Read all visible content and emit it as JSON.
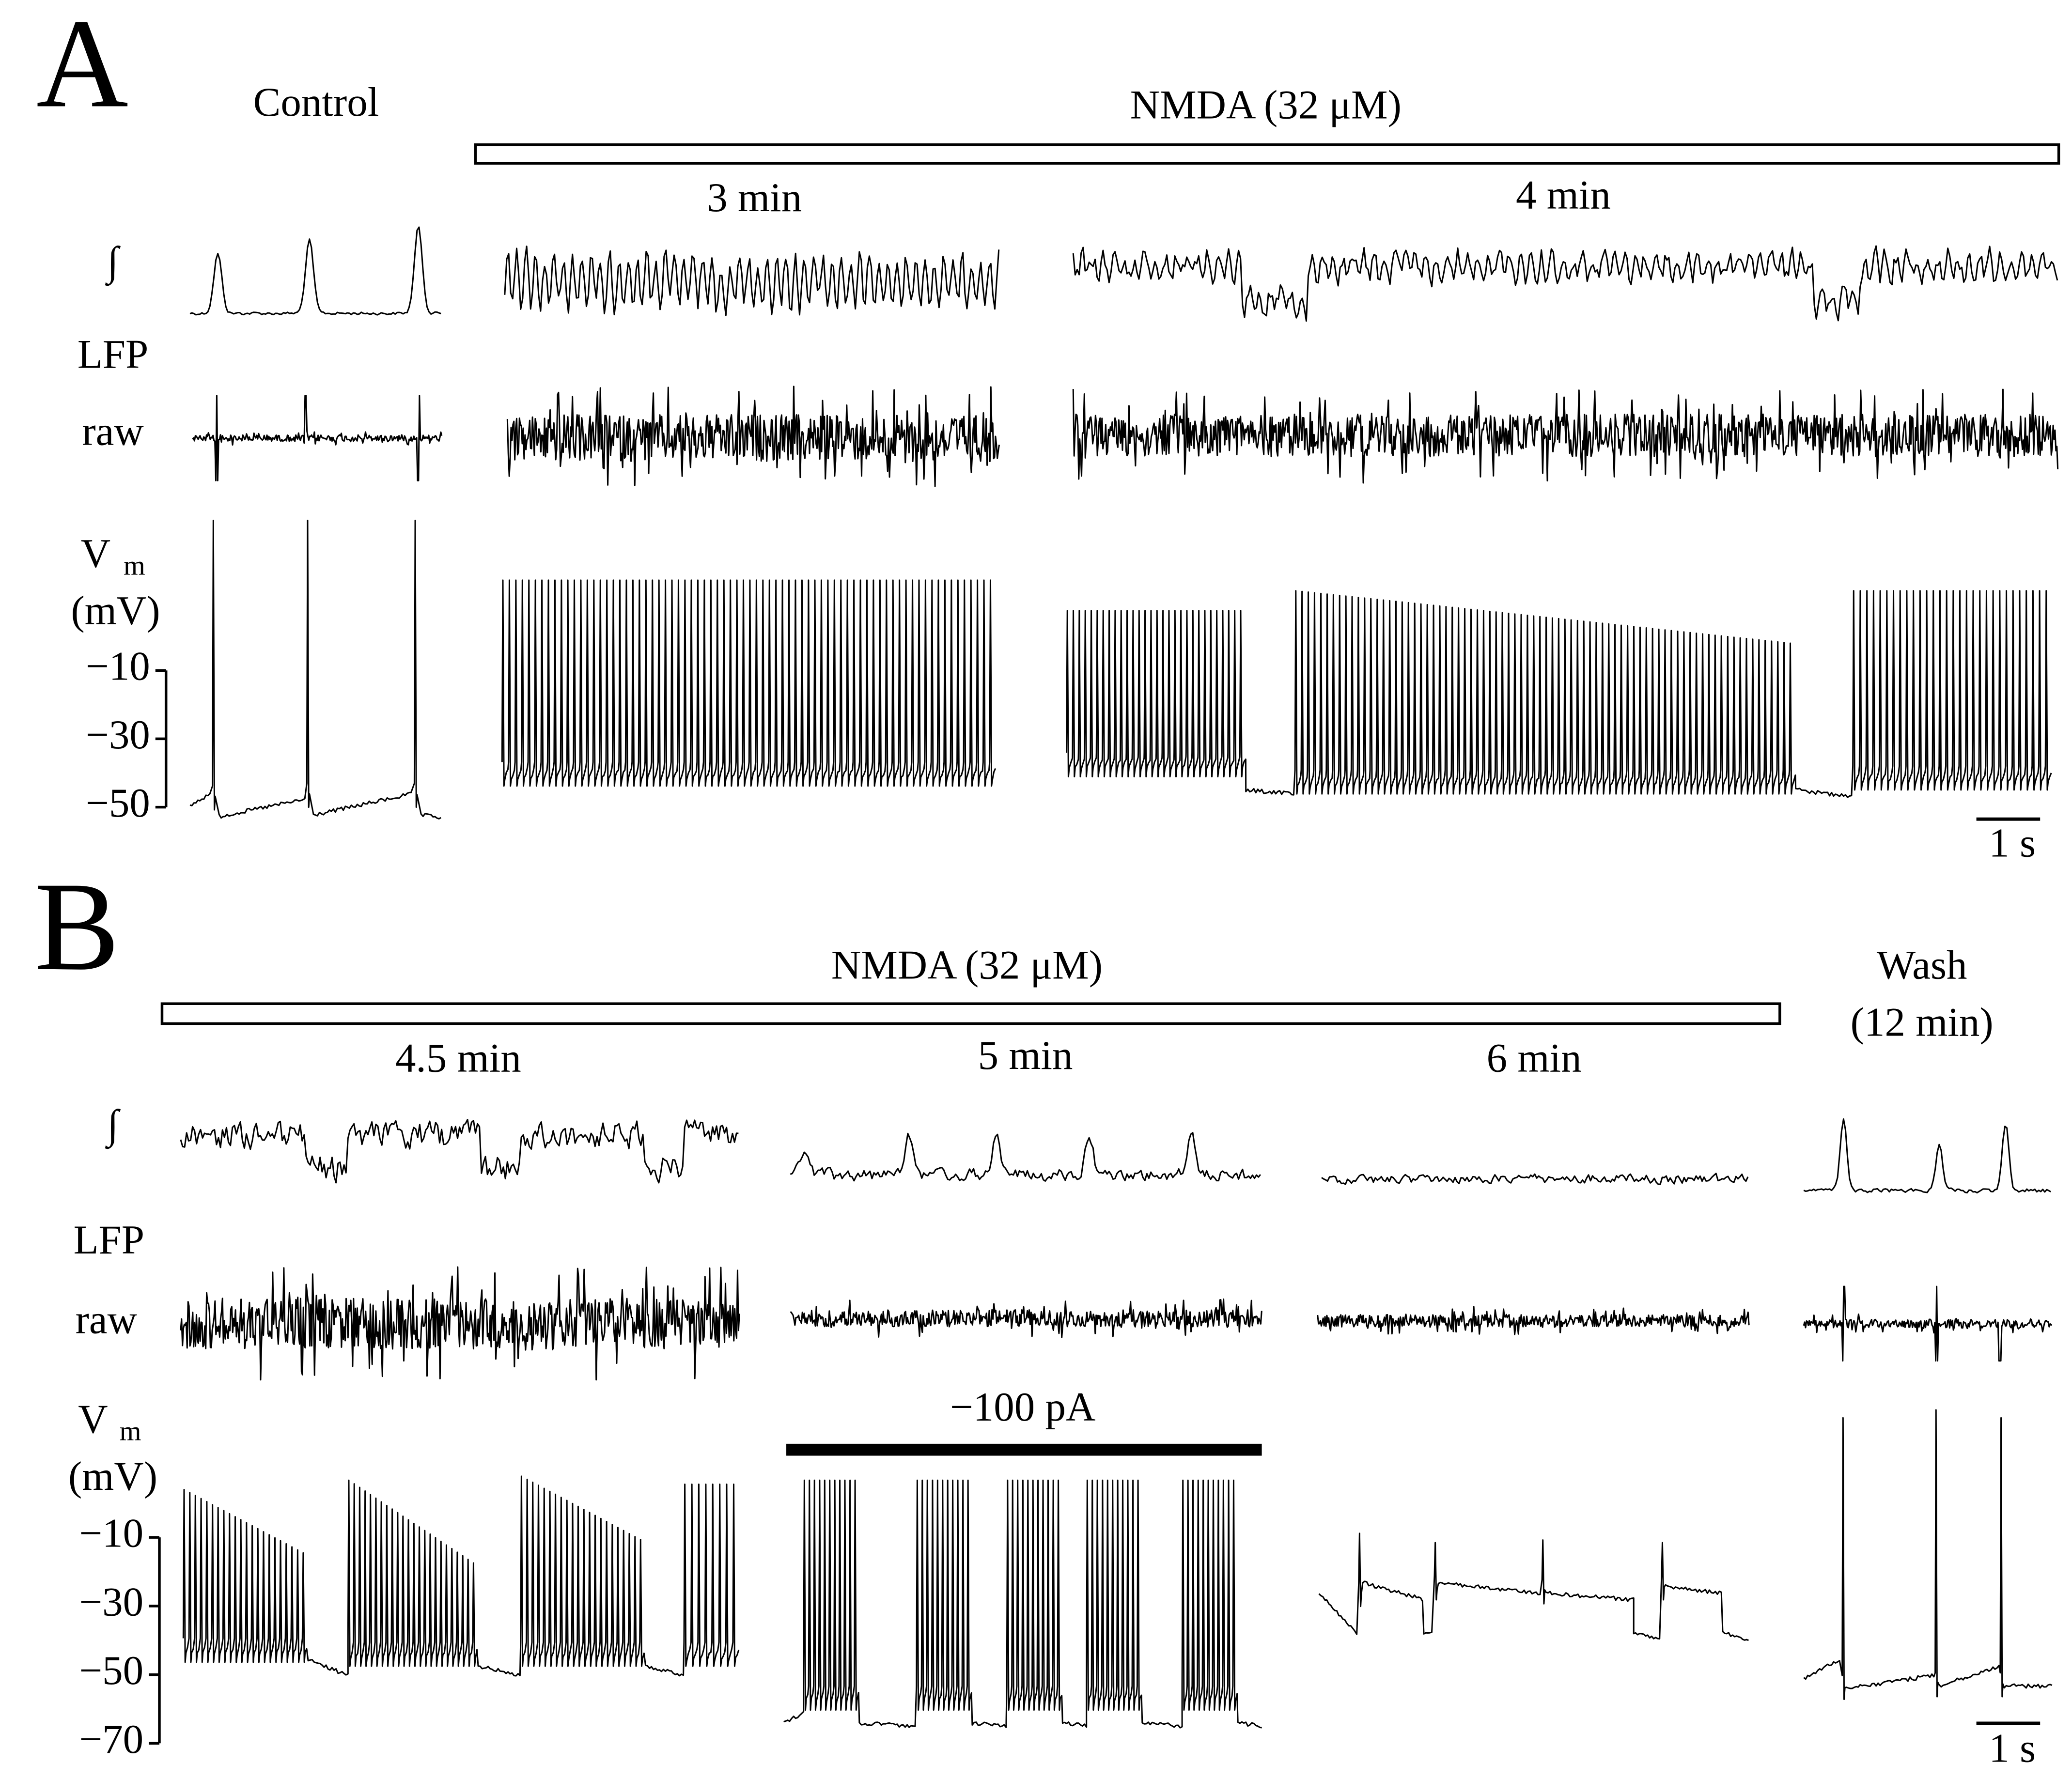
{
  "panel_a": {
    "label": "A",
    "control": "Control",
    "treatment": "NMDA (32 μM)",
    "times": [
      "3 min",
      "4 min"
    ],
    "rows": {
      "integrated": "∫",
      "lfp": "LFP",
      "raw": "raw",
      "vm": "V",
      "vm_sub": "m",
      "unit": "(mV)"
    },
    "yticks": [
      "−10",
      "−30",
      "−50"
    ],
    "scale_bar": "1 s"
  },
  "panel_b": {
    "label": "B",
    "treatment": "NMDA (32 μM)",
    "times": [
      "4.5 min",
      "5 min",
      "6 min"
    ],
    "wash": [
      "Wash",
      "(12 min)"
    ],
    "current": "−100 pA",
    "rows": {
      "integrated": "∫",
      "lfp": "LFP",
      "raw": "raw",
      "vm": "V",
      "vm_sub": "m",
      "unit": "(mV)"
    },
    "yticks": [
      "−10",
      "−30",
      "−50",
      "−70"
    ],
    "scale_bar": "1 s"
  }
}
